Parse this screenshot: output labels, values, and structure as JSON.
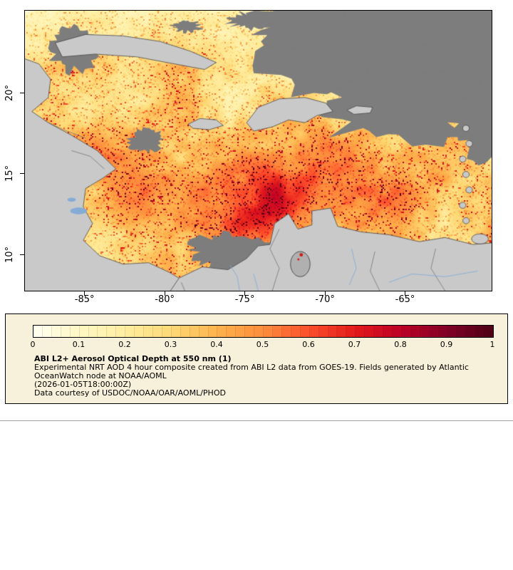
{
  "page": {
    "background": "#ffffff"
  },
  "map": {
    "y_axis": {
      "ticks": [
        {
          "label": "20°",
          "value": 20
        },
        {
          "label": "15°",
          "value": 15
        },
        {
          "label": "10°",
          "value": 10
        }
      ]
    },
    "x_axis": {
      "ticks": [
        {
          "label": "-85°",
          "value": -85
        },
        {
          "label": "-80°",
          "value": -80
        },
        {
          "label": "-75°",
          "value": -75
        },
        {
          "label": "-70°",
          "value": -70
        },
        {
          "label": "-65°",
          "value": -65
        }
      ]
    },
    "palette": {
      "no_data_gray": "#7d7d7d",
      "land_gray": "#c9c9c9",
      "coastline": "#454545",
      "border_line": "#6a6a6a",
      "river_blue": "#85acd6",
      "lake_gray": "#b0b0b0",
      "hotspot_red": "#cf1d12",
      "frame": "#000000"
    }
  },
  "colorbar": {
    "min": 0,
    "max": 1,
    "ticks": [
      "0",
      "0.1",
      "0.2",
      "0.3",
      "0.4",
      "0.5",
      "0.6",
      "0.7",
      "0.8",
      "0.9",
      "1"
    ],
    "stops": [
      {
        "value": 0.0,
        "color": "#fffff0"
      },
      {
        "value": 0.1,
        "color": "#fff7c4"
      },
      {
        "value": 0.2,
        "color": "#ffeda0"
      },
      {
        "value": 0.3,
        "color": "#fed976"
      },
      {
        "value": 0.4,
        "color": "#feb24c"
      },
      {
        "value": 0.5,
        "color": "#fd8d3c"
      },
      {
        "value": 0.6,
        "color": "#fc4e2a"
      },
      {
        "value": 0.7,
        "color": "#e31a1c"
      },
      {
        "value": 0.8,
        "color": "#bd0026"
      },
      {
        "value": 0.9,
        "color": "#800026"
      },
      {
        "value": 1.0,
        "color": "#4d0014"
      }
    ]
  },
  "legend": {
    "background": "#f7f0da",
    "title": "ABI L2+ Aerosol Optical Depth at 550 nm (1)",
    "description": "Experimental NRT AOD 4 hour composite created from ABI L2 data from GOES-19. Fields generated by Atlantic OceanWatch node at NOAA/AOML",
    "timestamp": "(2026-01-05T18:00:00Z)",
    "courtesy": "Data courtesy of USDOC/NOAA/OAR/AOML/PHOD"
  },
  "chart_data": {
    "type": "heatmap",
    "title": "ABI L2+ Aerosol Optical Depth at 550 nm (1)",
    "x_tick_values": [
      -85,
      -80,
      -75,
      -70,
      -65
    ],
    "y_tick_values": [
      10,
      15,
      20
    ],
    "colorbar_range": [
      0,
      1
    ],
    "colorbar_tick_values": [
      0,
      0.1,
      0.2,
      0.3,
      0.4,
      0.5,
      0.6,
      0.7,
      0.8,
      0.9,
      1
    ]
  }
}
